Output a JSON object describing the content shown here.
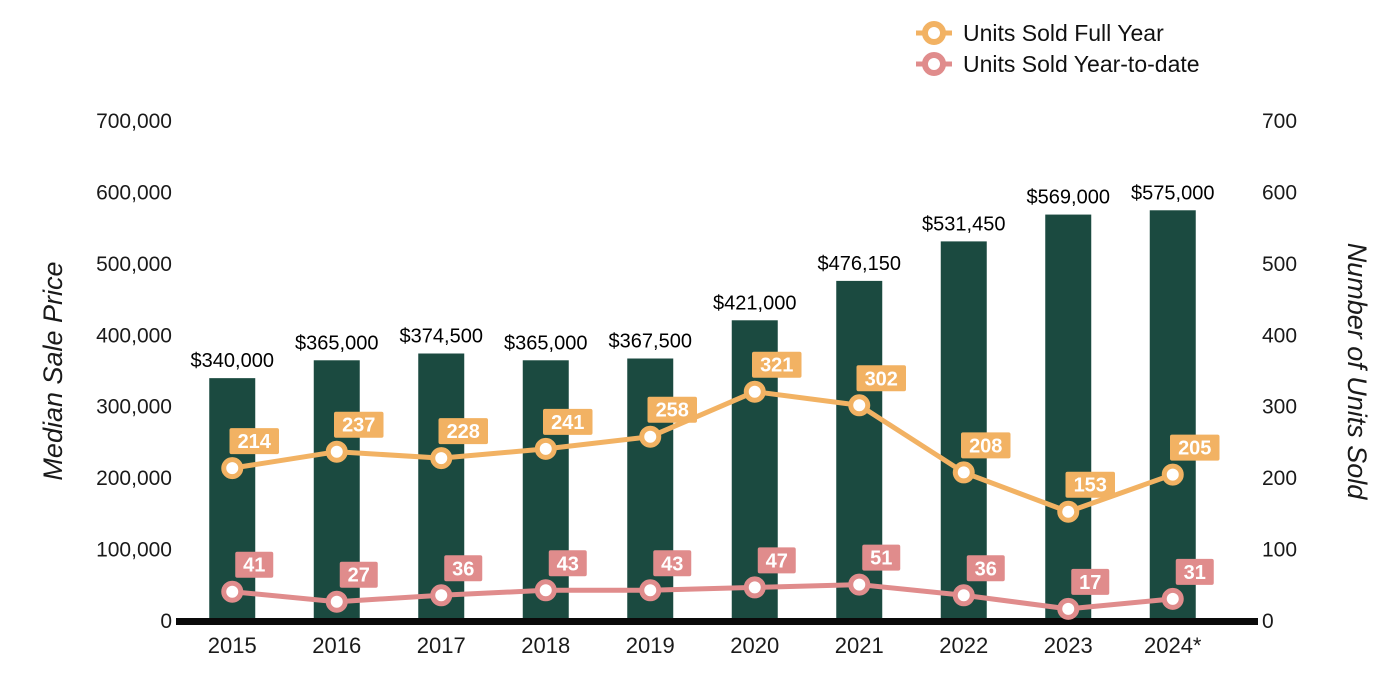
{
  "chart_data": {
    "type": "combo",
    "title": "",
    "categories": [
      "2015",
      "2016",
      "2017",
      "2018",
      "2019",
      "2020",
      "2021",
      "2022",
      "2023",
      "2024*"
    ],
    "bar_series": {
      "name": "Median Sale Price",
      "values": [
        340000,
        365000,
        374500,
        365000,
        367500,
        421000,
        476150,
        531450,
        569000,
        575000
      ],
      "labels": [
        "$340,000",
        "$365,000",
        "$374,500",
        "$365,000",
        "$367,500",
        "$421,000",
        "$476,150",
        "$531,450",
        "$569,000",
        "$575,000"
      ],
      "color": "#1B4A40"
    },
    "line_series": [
      {
        "name": "Units Sold Full Year",
        "values": [
          214,
          237,
          228,
          241,
          258,
          321,
          302,
          208,
          153,
          205
        ],
        "color": "#F2B263"
      },
      {
        "name": "Units Sold Year-to-date",
        "values": [
          41,
          27,
          36,
          43,
          43,
          47,
          51,
          36,
          17,
          31
        ],
        "color": "#E08C8C"
      }
    ],
    "left_axis": {
      "label": "Median Sale Price",
      "min": 0,
      "max": 700000,
      "step": 100000,
      "tick_labels": [
        "0",
        "100,000",
        "200,000",
        "300,000",
        "400,000",
        "500,000",
        "600,000",
        "700,000"
      ]
    },
    "right_axis": {
      "label": "Number of Units Sold",
      "min": 0,
      "max": 700,
      "step": 100,
      "tick_labels": [
        "0",
        "100",
        "200",
        "300",
        "400",
        "500",
        "600",
        "700"
      ]
    },
    "legend": {
      "position": "top-right",
      "items": [
        "Units Sold Full Year",
        "Units Sold Year-to-date"
      ]
    },
    "grid": false,
    "background": "#FFFFFF",
    "axis_line_color": "#0A0A0A",
    "marker_fill": "#FFFFFF"
  }
}
